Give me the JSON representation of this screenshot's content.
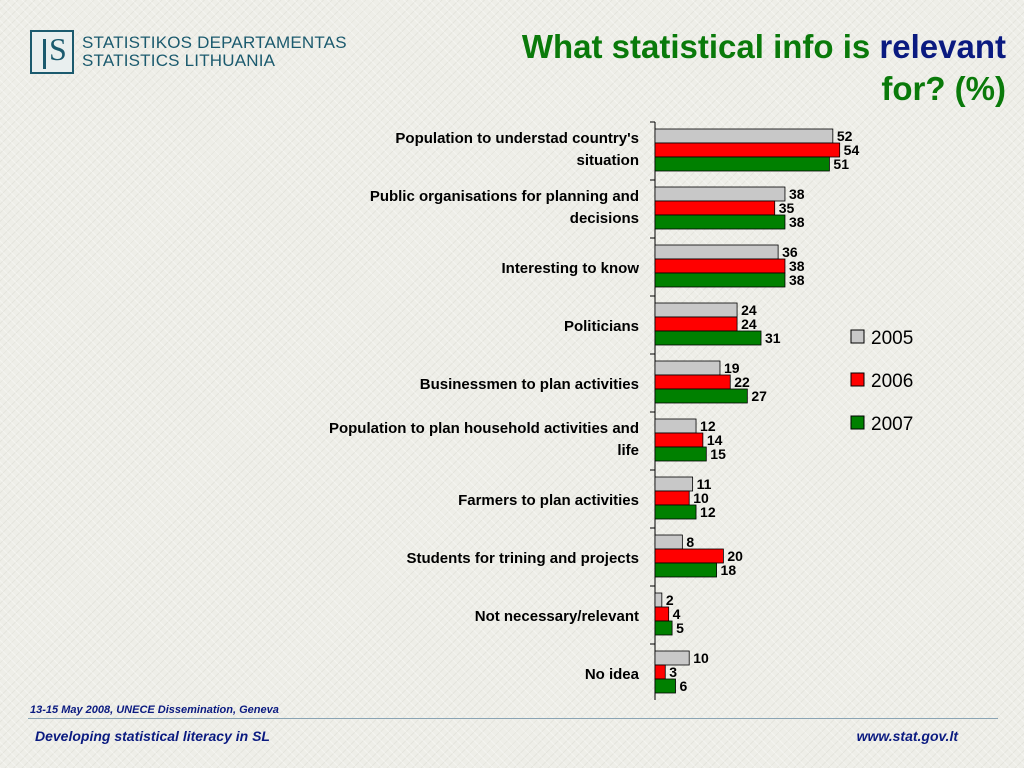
{
  "logo": {
    "line1": "STATISTIKOS DEPARTAMENTAS",
    "line2": "STATISTICS LITHUANIA"
  },
  "title": {
    "part1": "What statistical info is ",
    "highlight": "relevant",
    "part2": "for? (%)"
  },
  "footer": {
    "event": "13-15 May 2008, UNECE Dissemination, Geneva",
    "left": "Developing statistical literacy in SL",
    "right": "www.stat.gov.lt"
  },
  "colors": {
    "s2005": "#c8c8c8",
    "s2006": "#ff0000",
    "s2007": "#008000",
    "title_green": "#0a7a0a",
    "title_blue": "#0a1a80"
  },
  "chart_data": {
    "type": "bar",
    "orientation": "horizontal",
    "categories": [
      [
        "Population to understad country's",
        "situation"
      ],
      [
        "Public organisations for planning and",
        "decisions"
      ],
      [
        "Interesting to know"
      ],
      [
        "Politicians"
      ],
      [
        "Businessmen to plan activities"
      ],
      [
        "Population to plan household activities and",
        "life"
      ],
      [
        "Farmers to plan activities"
      ],
      [
        "Students for trining and projects"
      ],
      [
        "Not necessary/relevant"
      ],
      [
        "No idea"
      ]
    ],
    "series": [
      {
        "name": "2005",
        "color": "#c8c8c8",
        "values": [
          52,
          38,
          36,
          24,
          19,
          12,
          11,
          8,
          2,
          10
        ]
      },
      {
        "name": "2006",
        "color": "#ff0000",
        "values": [
          54,
          35,
          38,
          24,
          22,
          14,
          10,
          20,
          4,
          3
        ]
      },
      {
        "name": "2007",
        "color": "#008000",
        "values": [
          51,
          38,
          38,
          31,
          27,
          15,
          12,
          18,
          5,
          6
        ]
      }
    ],
    "legend": "right"
  }
}
